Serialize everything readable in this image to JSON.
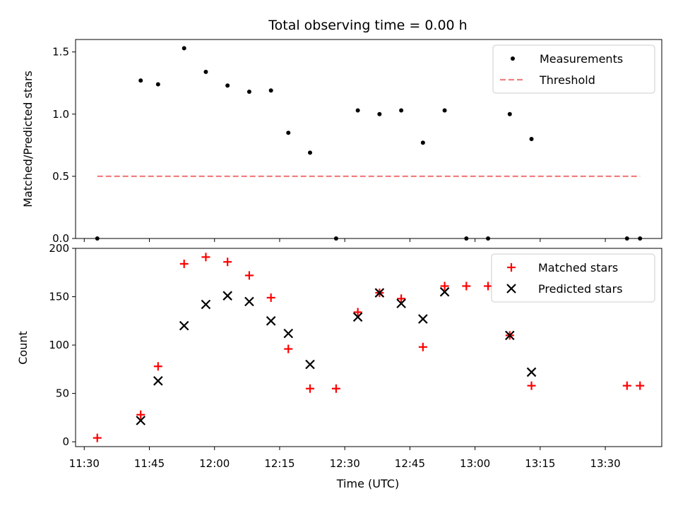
{
  "chart_data": {
    "type": "scatter",
    "title": "Total observing time = 0.00 h",
    "xlabel": "Time (UTC)",
    "x_ticks": [
      "11:30",
      "11:45",
      "12:00",
      "12:15",
      "12:30",
      "12:45",
      "13:00",
      "13:15",
      "13:30"
    ],
    "xlim": [
      "11:28",
      "13:43"
    ],
    "top": {
      "ylabel": "Matched/Predicted stars",
      "ylim": [
        0,
        1.6
      ],
      "y_ticks": [
        "0.0",
        "0.5",
        "1.0",
        "1.5"
      ],
      "legend_position": "top-right",
      "series": [
        {
          "name": "Measurements",
          "marker": "dot",
          "color": "#000000",
          "x": [
            "11:33",
            "11:43",
            "11:47",
            "11:53",
            "11:58",
            "12:03",
            "12:08",
            "12:13",
            "12:17",
            "12:22",
            "12:28",
            "12:33",
            "12:38",
            "12:43",
            "12:48",
            "12:53",
            "12:58",
            "13:03",
            "13:08",
            "13:13",
            "13:35",
            "13:38"
          ],
          "y": [
            0.0,
            1.27,
            1.24,
            1.53,
            1.34,
            1.23,
            1.18,
            1.19,
            0.85,
            0.69,
            0.0,
            1.03,
            1.0,
            1.03,
            0.77,
            1.03,
            0.0,
            0.0,
            1.0,
            0.8,
            0.0,
            0.0
          ]
        },
        {
          "name": "Threshold",
          "marker": "dashed-line",
          "color": "#f08080",
          "x": [
            "11:33",
            "13:38"
          ],
          "y": [
            0.5,
            0.5
          ]
        }
      ]
    },
    "bottom": {
      "ylabel": "Count",
      "ylim": [
        -5,
        200
      ],
      "y_ticks": [
        "0",
        "50",
        "100",
        "150",
        "200"
      ],
      "legend_position": "top-right",
      "series": [
        {
          "name": "Matched stars",
          "marker": "plus",
          "color": "#ff0000",
          "x": [
            "11:33",
            "11:43",
            "11:47",
            "11:53",
            "11:58",
            "12:03",
            "12:08",
            "12:13",
            "12:17",
            "12:22",
            "12:28",
            "12:33",
            "12:38",
            "12:43",
            "12:48",
            "12:53",
            "12:58",
            "13:03",
            "13:08",
            "13:13",
            "13:35",
            "13:38"
          ],
          "y": [
            4,
            28,
            78,
            184,
            191,
            186,
            172,
            149,
            96,
            55,
            55,
            134,
            154,
            148,
            98,
            161,
            161,
            161,
            110,
            58,
            58,
            58
          ]
        },
        {
          "name": "Predicted stars",
          "marker": "x",
          "color": "#000000",
          "x": [
            "11:43",
            "11:47",
            "11:53",
            "11:58",
            "12:03",
            "12:08",
            "12:13",
            "12:17",
            "12:22",
            "12:33",
            "12:38",
            "12:43",
            "12:48",
            "12:53",
            "13:08",
            "13:13"
          ],
          "y": [
            22,
            63,
            120,
            142,
            151,
            145,
            125,
            112,
            80,
            129,
            154,
            143,
            127,
            155,
            110,
            72
          ]
        }
      ]
    }
  }
}
